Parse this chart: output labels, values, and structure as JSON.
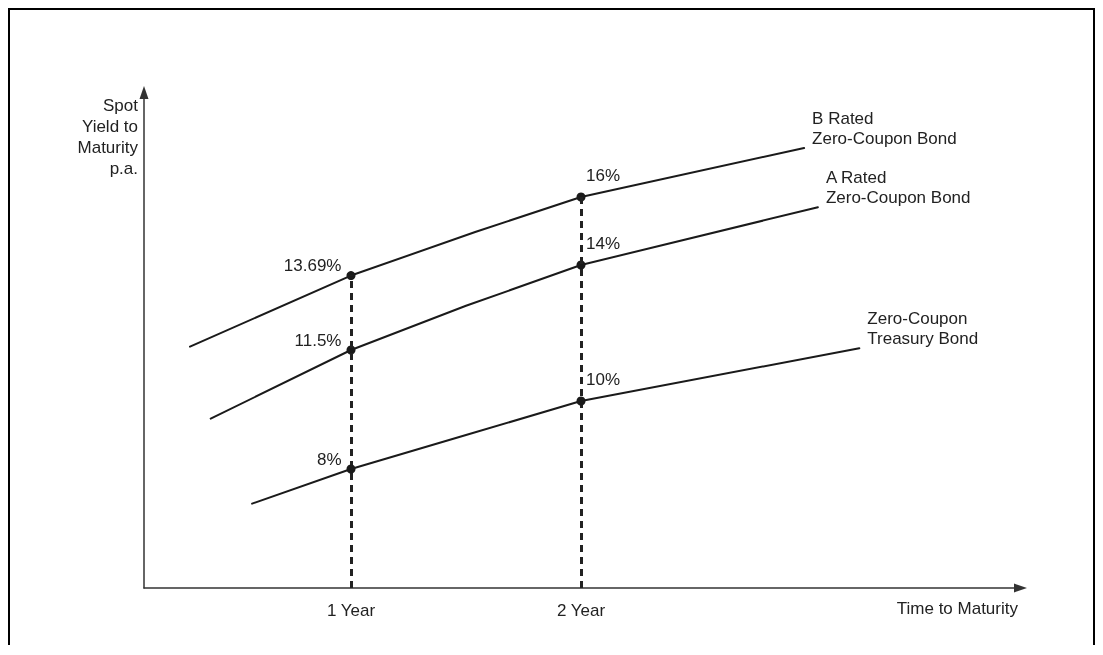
{
  "chart_data": {
    "type": "line",
    "xlabel": "Time to Maturity",
    "ylabel": "Spot\nYield to\nMaturity\np.a.",
    "xlim": [
      0.1,
      3.9
    ],
    "xticks": [
      {
        "value": 1,
        "label": "1 Year"
      },
      {
        "value": 2,
        "label": "2 Year"
      }
    ],
    "ylim": [
      4.5,
      19
    ],
    "tick_labels": "x",
    "grid": false,
    "legend": false,
    "line_style": "solid",
    "ref_lines": [
      {
        "axis": "x",
        "value": 1,
        "line_style": "dashed"
      },
      {
        "axis": "x",
        "value": 2,
        "line_style": "dashed"
      }
    ],
    "series": [
      {
        "name": "B Rated\nZero-Coupon Bond",
        "color": "#1a1a1a",
        "x": [
          0.3,
          1,
          1.54,
          2,
          2.97
        ],
        "values": [
          11.6,
          13.69,
          14.97,
          16,
          17.44
        ],
        "value_labels": [
          null,
          "13.69%",
          null,
          "16%",
          null
        ]
      },
      {
        "name": "A Rated\nZero-Coupon Bond",
        "color": "#1a1a1a",
        "x": [
          0.39,
          1,
          1.5,
          2,
          3.03
        ],
        "values": [
          9.48,
          11.5,
          12.8,
          14,
          15.7
        ],
        "value_labels": [
          null,
          "11.5%",
          null,
          "14%",
          null
        ]
      },
      {
        "name": "Zero-Coupon\nTreasury Bond",
        "color": "#1a1a1a",
        "x": [
          0.57,
          1,
          1.5,
          2,
          3.21
        ],
        "values": [
          6.98,
          8,
          9,
          10,
          11.55
        ],
        "value_labels": [
          null,
          "8%",
          null,
          "10%",
          null
        ]
      }
    ]
  }
}
